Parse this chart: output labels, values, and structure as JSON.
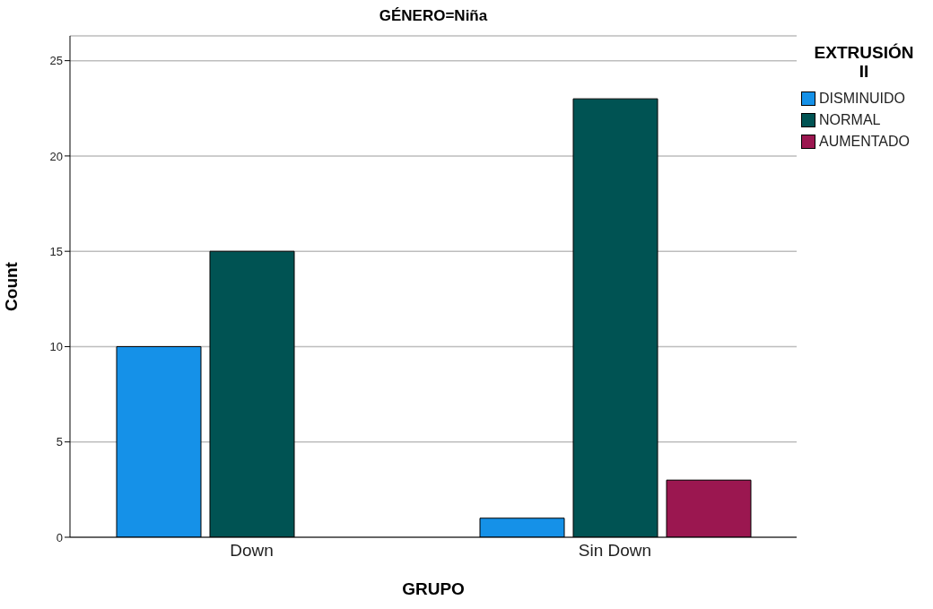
{
  "chart_data": {
    "type": "bar",
    "title": "GÉNERO=Niña",
    "xlabel": "GRUPO",
    "ylabel": "Count",
    "legend_title": "EXTRUSIÓN II",
    "categories": [
      "Down",
      "Sin Down"
    ],
    "series": [
      {
        "name": "DISMINUIDO",
        "color": "#1591e8",
        "values": [
          10,
          1
        ]
      },
      {
        "name": "NORMAL",
        "color": "#005353",
        "values": [
          15,
          23
        ]
      },
      {
        "name": "AUMENTADO",
        "color": "#9b1750",
        "values": [
          null,
          3
        ]
      }
    ],
    "ylim": [
      0,
      26.3
    ],
    "yticks": [
      0,
      5,
      10,
      15,
      20,
      25
    ],
    "grid": "y",
    "legend": "top right"
  }
}
